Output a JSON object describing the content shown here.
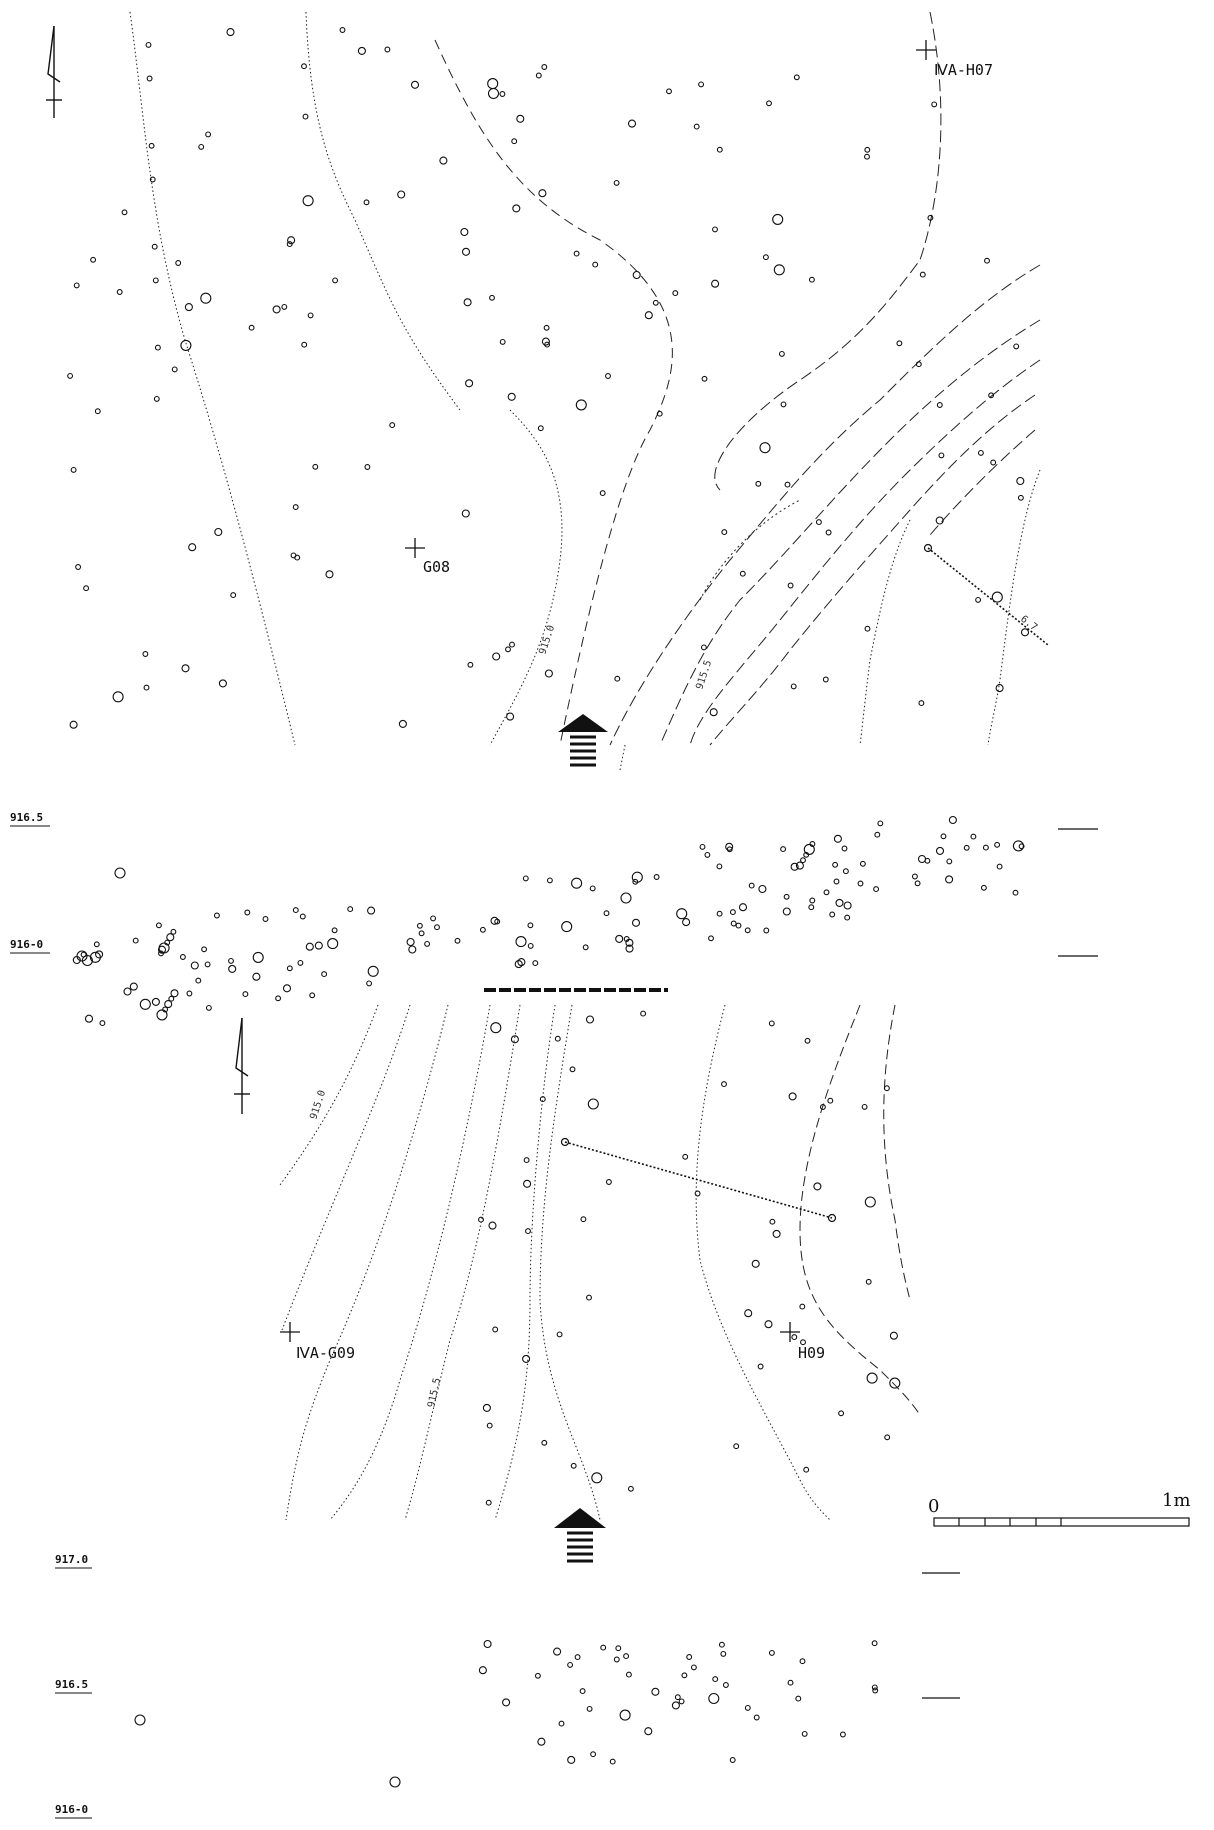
{
  "upper_plan": {
    "grid_points": [
      "ⅣA-H07",
      "G08"
    ],
    "contours": [
      "915.0",
      "915.5"
    ],
    "section_label": "6.7"
  },
  "upper_profile": {
    "elevations": [
      "916.5",
      "916-0"
    ]
  },
  "lower_plan": {
    "grid_points": [
      "ⅣA-G09",
      "H09"
    ],
    "contours": [
      "915.0",
      "915.5"
    ]
  },
  "lower_profile": {
    "elevations": [
      "917.0",
      "916.5",
      "916-0"
    ]
  },
  "scale_bar": {
    "start_label": "0",
    "end_label": "1m"
  },
  "icons": [
    "north-arrow-icon",
    "view-direction-arrow-icon",
    "grid-cross-icon"
  ],
  "colors": {
    "ink": "#111111",
    "paper": "#ffffff"
  }
}
